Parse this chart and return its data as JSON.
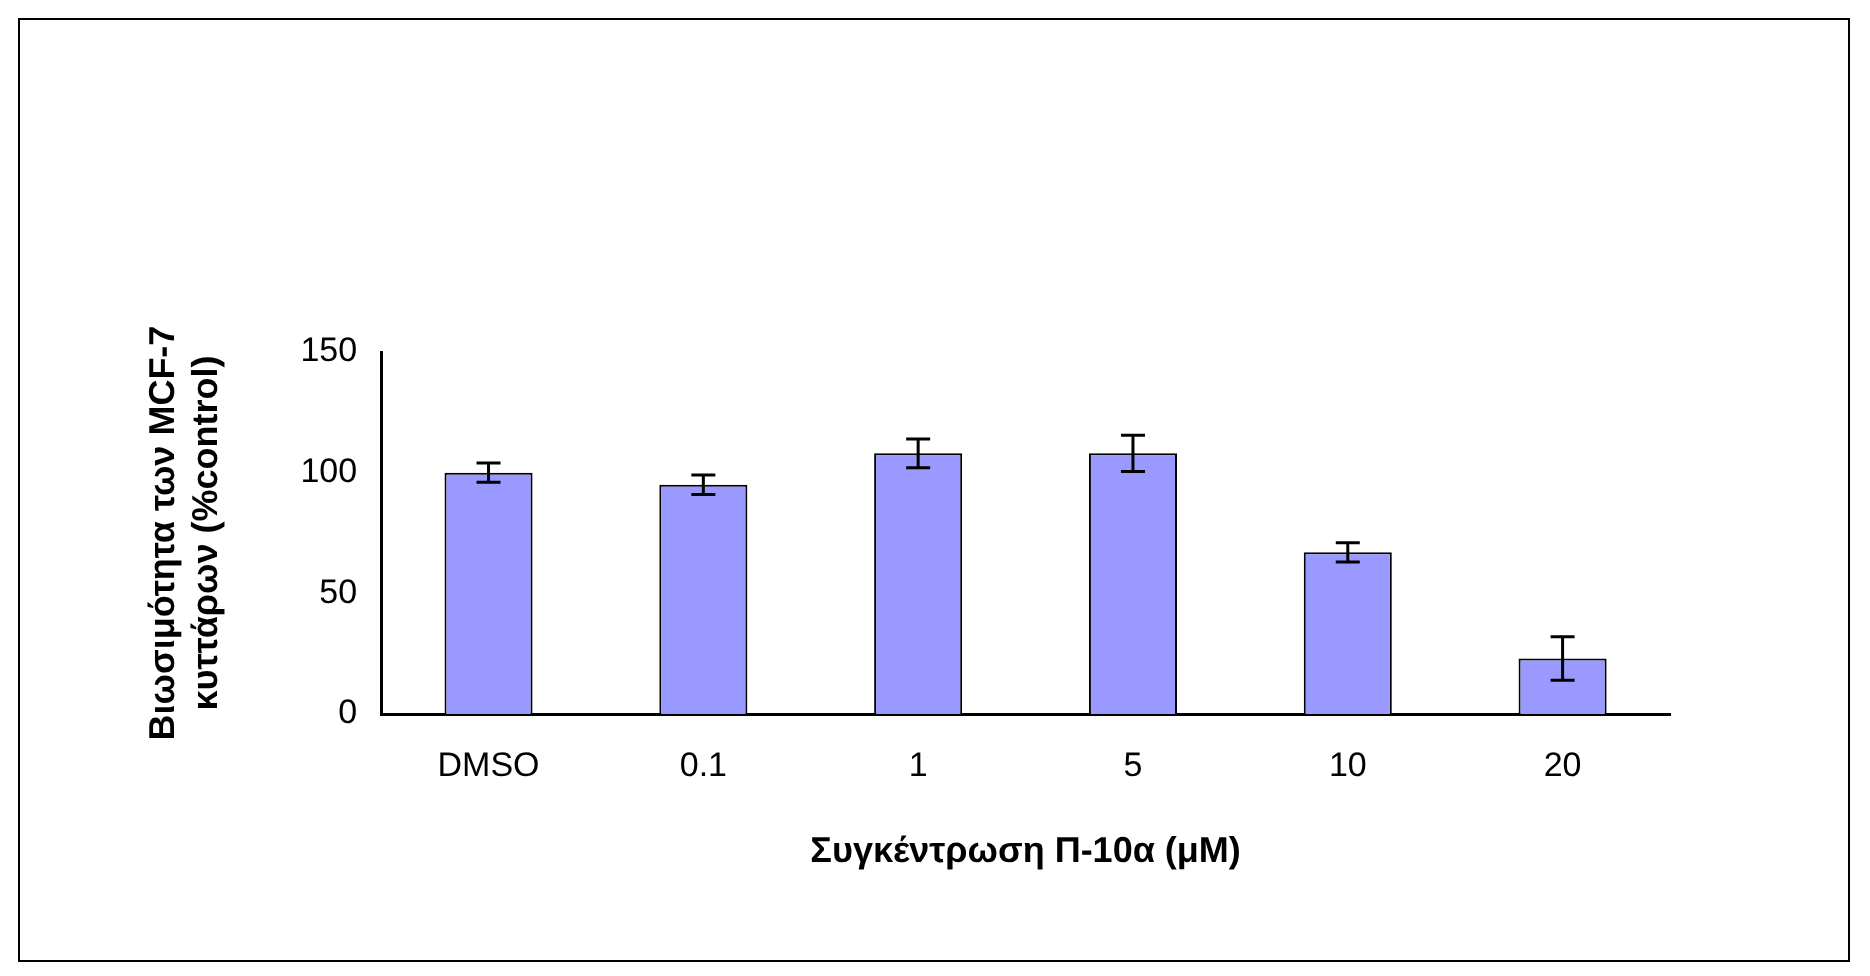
{
  "chart_data": {
    "type": "bar",
    "xlabel": "Συγκέντρωση Π-10α (μM)",
    "ylabel": "Βιωσιμότητα των MCF-7 κυττάρων (%control)",
    "categories": [
      "DMSO",
      "0.1",
      "1",
      "5",
      "10",
      "20"
    ],
    "values": [
      100,
      95,
      108,
      108,
      67,
      23
    ],
    "errors": [
      4,
      4,
      6,
      7.5,
      4,
      9
    ],
    "color": "#9999ff",
    "ylim": [
      0,
      150
    ],
    "yticks": [
      0,
      50,
      100,
      150
    ],
    "grid": false,
    "legend": false
  }
}
